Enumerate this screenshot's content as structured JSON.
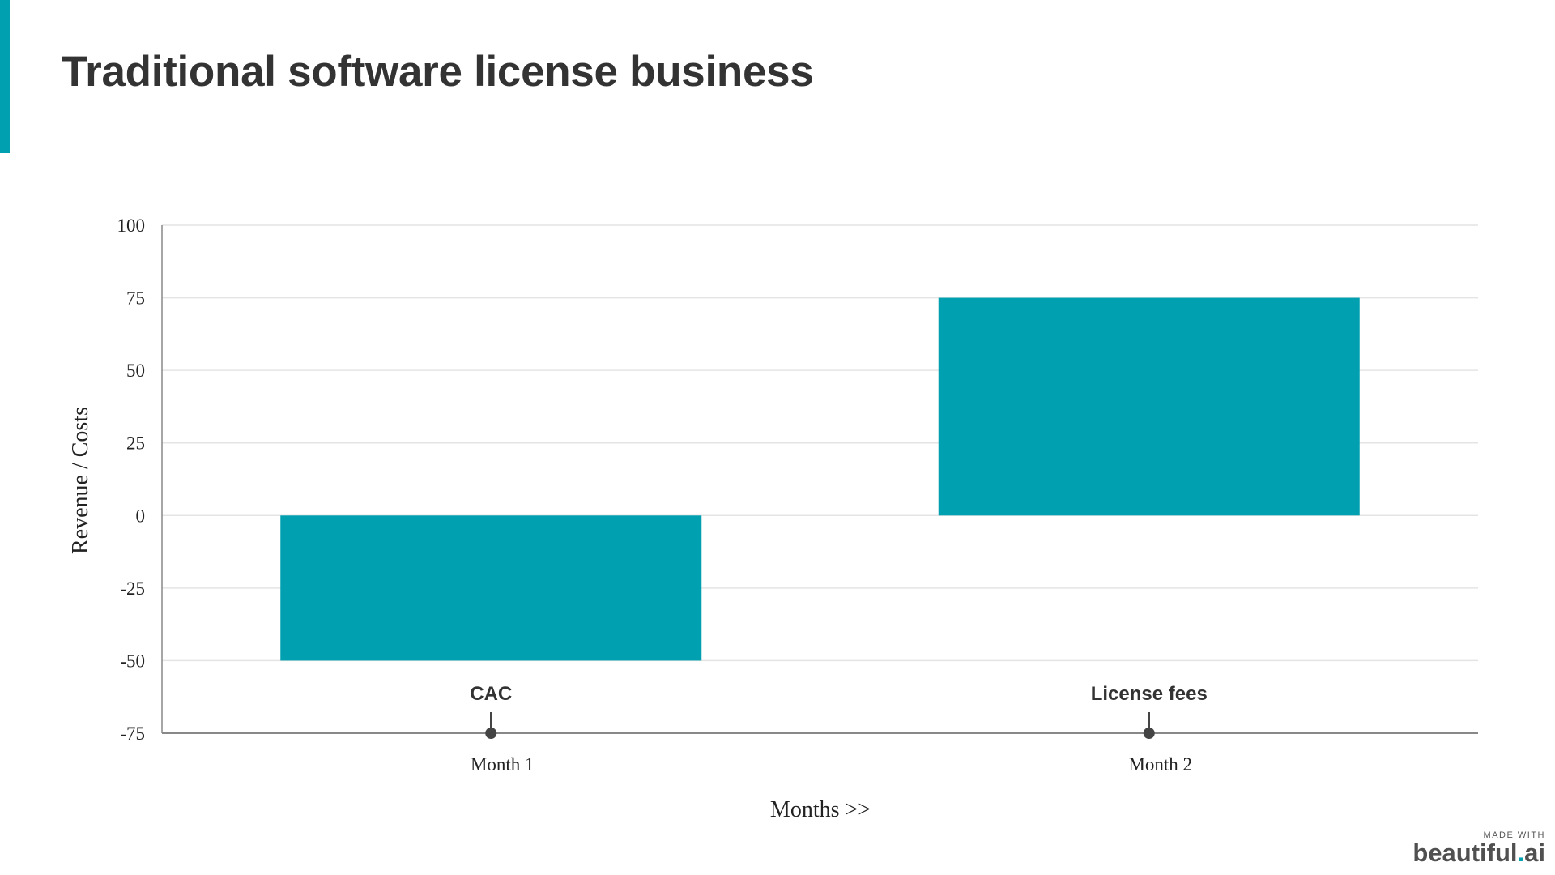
{
  "slide": {
    "title": "Traditional software license business",
    "accent_color": "#00A0B0"
  },
  "chart_data": {
    "type": "bar",
    "categories": [
      "Month 1",
      "Month 2"
    ],
    "series": [
      {
        "values": [
          -50,
          75
        ],
        "color": "#00A0B0"
      }
    ],
    "annotations": [
      {
        "category": "Month 1",
        "text": "CAC"
      },
      {
        "category": "Month 2",
        "text": "License fees"
      }
    ],
    "xlabel": "Months >>",
    "ylabel": "Revenue / Costs",
    "ylim": [
      -75,
      100
    ],
    "yticks": [
      100,
      75,
      50,
      25,
      0,
      -25,
      -50,
      -75
    ],
    "grid": true,
    "legend": "none"
  },
  "watermark": {
    "made_with": "MADE WITH",
    "brand_main": "beautiful",
    "brand_dot": ".",
    "brand_suffix": "ai"
  }
}
